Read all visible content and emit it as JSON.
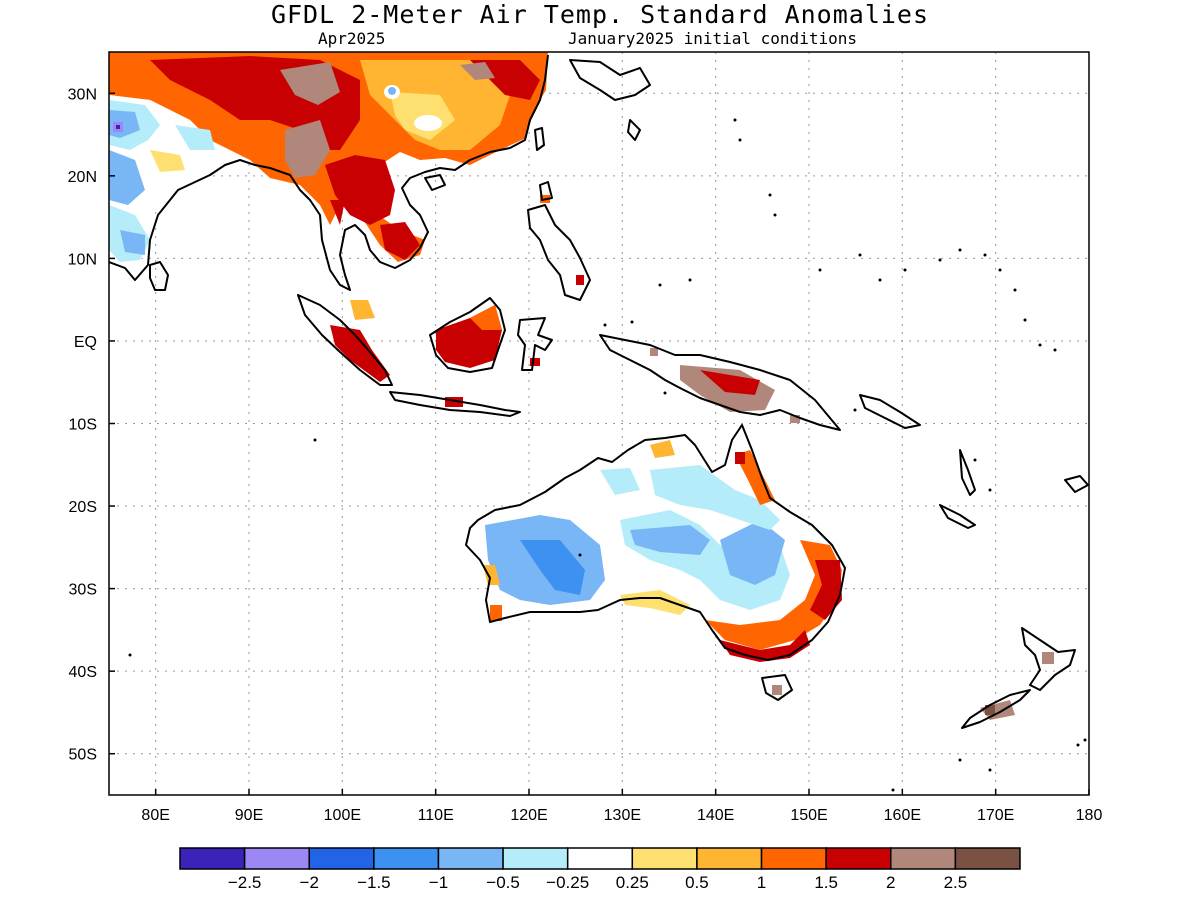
{
  "header": {
    "title": "GFDL 2-Meter Air Temp. Standard Anomalies",
    "target_month": "Apr2025",
    "init_conditions": "January2025 initial conditions"
  },
  "map": {
    "lat_labels": [
      "30N",
      "20N",
      "10N",
      "EQ",
      "10S",
      "20S",
      "30S",
      "40S",
      "50S"
    ],
    "lat_values": [
      30,
      20,
      10,
      0,
      -10,
      -20,
      -30,
      -40,
      -50
    ],
    "lon_labels": [
      "80E",
      "90E",
      "100E",
      "110E",
      "120E",
      "130E",
      "140E",
      "150E",
      "160E",
      "170E",
      "180"
    ],
    "lon_values": [
      80,
      90,
      100,
      110,
      120,
      130,
      140,
      150,
      160,
      170,
      180
    ],
    "lon_range": [
      75,
      180
    ],
    "lat_range": [
      -55,
      35
    ]
  },
  "colorbar": {
    "colors": [
      "#3b22b9",
      "#9d87f2",
      "#2264e6",
      "#3d91f0",
      "#78b6f6",
      "#b4ecfa",
      "#ffffff",
      "#fde070",
      "#ffb531",
      "#ff6602",
      "#c80002",
      "#b0877a",
      "#7a5244"
    ],
    "labels": [
      "-2.5",
      "-2",
      "-1.5",
      "-1",
      "-0.5",
      "-0.25",
      "0.25",
      "0.5",
      "1",
      "1.5",
      "2",
      "2.5"
    ]
  }
}
